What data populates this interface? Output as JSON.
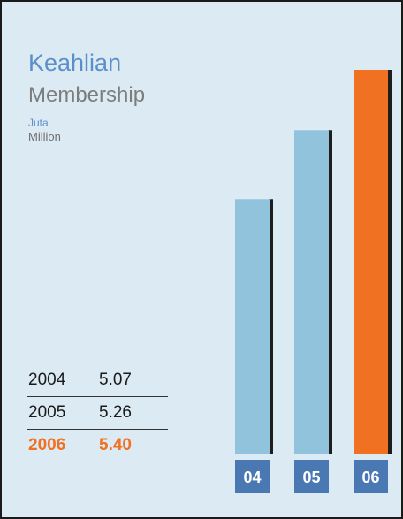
{
  "text": {
    "title": "Keahlian",
    "subtitle": "Membership",
    "unit_my": "Juta",
    "unit_en": "Million"
  },
  "table": [
    {
      "year": "2004",
      "value": "5.07",
      "highlight": false
    },
    {
      "year": "2005",
      "value": "5.26",
      "highlight": false
    },
    {
      "year": "2006",
      "value": "5.40",
      "highlight": true
    }
  ],
  "colors": {
    "bar_default": "#91c3dc",
    "bar_highlight": "#f07122",
    "shadow": "#1e1e1e",
    "label_box": "#4a78b2",
    "label_text": "#ffffff"
  },
  "chart_data": {
    "type": "bar",
    "title": "Keahlian",
    "subtitle": "Membership",
    "ylabel": "Juta / Million",
    "categories": [
      "04",
      "05",
      "06"
    ],
    "values": [
      5.07,
      5.26,
      5.4
    ],
    "highlight_index": 2,
    "grid": false
  }
}
